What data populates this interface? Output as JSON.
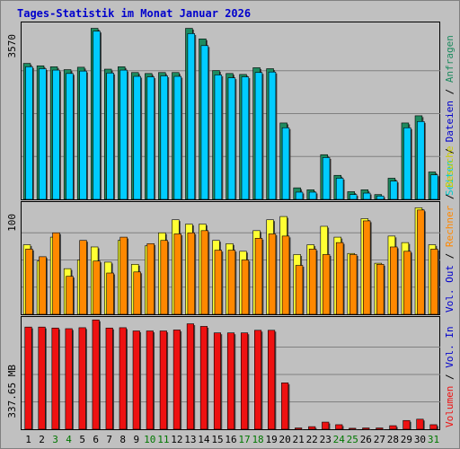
{
  "title": "Tages-Statistik im Monat Januar 2026",
  "days": [
    "1",
    "2",
    "3",
    "4",
    "5",
    "6",
    "7",
    "8",
    "9",
    "10",
    "11",
    "12",
    "13",
    "14",
    "15",
    "16",
    "17",
    "18",
    "19",
    "20",
    "21",
    "22",
    "23",
    "24",
    "25",
    "26",
    "27",
    "28",
    "29",
    "30",
    "31"
  ],
  "weekend_days": [
    "3",
    "4",
    "10",
    "11",
    "17",
    "18",
    "24",
    "25",
    "31"
  ],
  "colors": {
    "title": "#0000cc",
    "weekday_label": "#000000",
    "weekend_label": "#007700",
    "anfragen": "#1e8a5f",
    "dateien": "#00ccff",
    "seiten": "#00cccc",
    "besuche": "#ffff33",
    "rechner": "#ff8800",
    "volumen": "#ee1111",
    "blue_label": "#0000cc",
    "panel_bg": "#c0c0c0",
    "page_bg": "#c0c0c0",
    "grid": "#808080"
  },
  "panel_labels": {
    "top_scale": "3570",
    "mid_scale": "100",
    "bottom_scale": "337.65 MB"
  },
  "side_labels": {
    "top": {
      "anfragen": "Anfragen",
      "sep1": " / ",
      "dateien": "Dateien",
      "sep2": " / ",
      "seiten": "Seiten"
    },
    "mid": {
      "besuche": "Besuche",
      "sep1": " / ",
      "rechner": "Rechner",
      "sep2": " / ",
      "out": "Vol. Out"
    },
    "bottom": {
      "in": "Vol. In",
      "sep1": " / ",
      "volumen": "Volumen"
    }
  },
  "chart_data": [
    {
      "type": "bar",
      "panel": "top",
      "categories": [
        "1",
        "2",
        "3",
        "4",
        "5",
        "6",
        "7",
        "8",
        "9",
        "10",
        "11",
        "12",
        "13",
        "14",
        "15",
        "16",
        "17",
        "18",
        "19",
        "20",
        "21",
        "22",
        "23",
        "24",
        "25",
        "26",
        "27",
        "28",
        "29",
        "30",
        "31"
      ],
      "ylim": [
        0,
        3570
      ],
      "series": [
        {
          "name": "Anfragen",
          "values": [
            2830,
            2780,
            2760,
            2700,
            2750,
            3560,
            2710,
            2760,
            2640,
            2620,
            2640,
            2640,
            3560,
            3340,
            2680,
            2620,
            2600,
            2740,
            2720,
            1590,
            240,
            200,
            930,
            500,
            160,
            200,
            100,
            440,
            1590,
            1740,
            570
          ]
        },
        {
          "name": "Dateien",
          "values": [
            2760,
            2720,
            2690,
            2620,
            2670,
            3500,
            2630,
            2690,
            2560,
            2550,
            2570,
            2560,
            3450,
            3200,
            2590,
            2530,
            2550,
            2640,
            2650,
            1490,
            150,
            150,
            870,
            440,
            100,
            130,
            70,
            380,
            1490,
            1620,
            510
          ]
        }
      ]
    },
    {
      "type": "bar",
      "panel": "middle",
      "categories": [
        "1",
        "2",
        "3",
        "4",
        "5",
        "6",
        "7",
        "8",
        "9",
        "10",
        "11",
        "12",
        "13",
        "14",
        "15",
        "16",
        "17",
        "18",
        "19",
        "20",
        "21",
        "22",
        "23",
        "24",
        "25",
        "26",
        "27",
        "28",
        "29",
        "30",
        "31"
      ],
      "ylim": [
        0,
        100
      ],
      "series": [
        {
          "name": "Besuche",
          "values": [
            64,
            49,
            71,
            42,
            50,
            62,
            48,
            68,
            46,
            63,
            75,
            87,
            83,
            83,
            68,
            65,
            58,
            77,
            87,
            90,
            55,
            64,
            81,
            71,
            56,
            88,
            47,
            72,
            66,
            98,
            64
          ]
        },
        {
          "name": "Rechner",
          "values": [
            60,
            53,
            75,
            35,
            68,
            49,
            38,
            71,
            39,
            65,
            68,
            74,
            75,
            77,
            59,
            59,
            50,
            70,
            74,
            72,
            45,
            60,
            55,
            66,
            55,
            86,
            46,
            62,
            58,
            96,
            60
          ]
        }
      ]
    },
    {
      "type": "bar",
      "panel": "bottom",
      "categories": [
        "1",
        "2",
        "3",
        "4",
        "5",
        "6",
        "7",
        "8",
        "9",
        "10",
        "11",
        "12",
        "13",
        "14",
        "15",
        "16",
        "17",
        "18",
        "19",
        "20",
        "21",
        "22",
        "23",
        "24",
        "25",
        "26",
        "27",
        "28",
        "29",
        "30",
        "31"
      ],
      "ylim": [
        0,
        337.65
      ],
      "unit": "MB",
      "series": [
        {
          "name": "Volumen",
          "values": [
            315,
            315,
            312,
            310,
            313,
            337,
            312,
            313,
            303,
            303,
            303,
            306,
            325,
            317,
            297,
            297,
            297,
            305,
            305,
            143,
            4,
            8,
            22,
            14,
            3,
            4,
            4,
            11,
            27,
            31,
            14
          ]
        }
      ]
    }
  ]
}
